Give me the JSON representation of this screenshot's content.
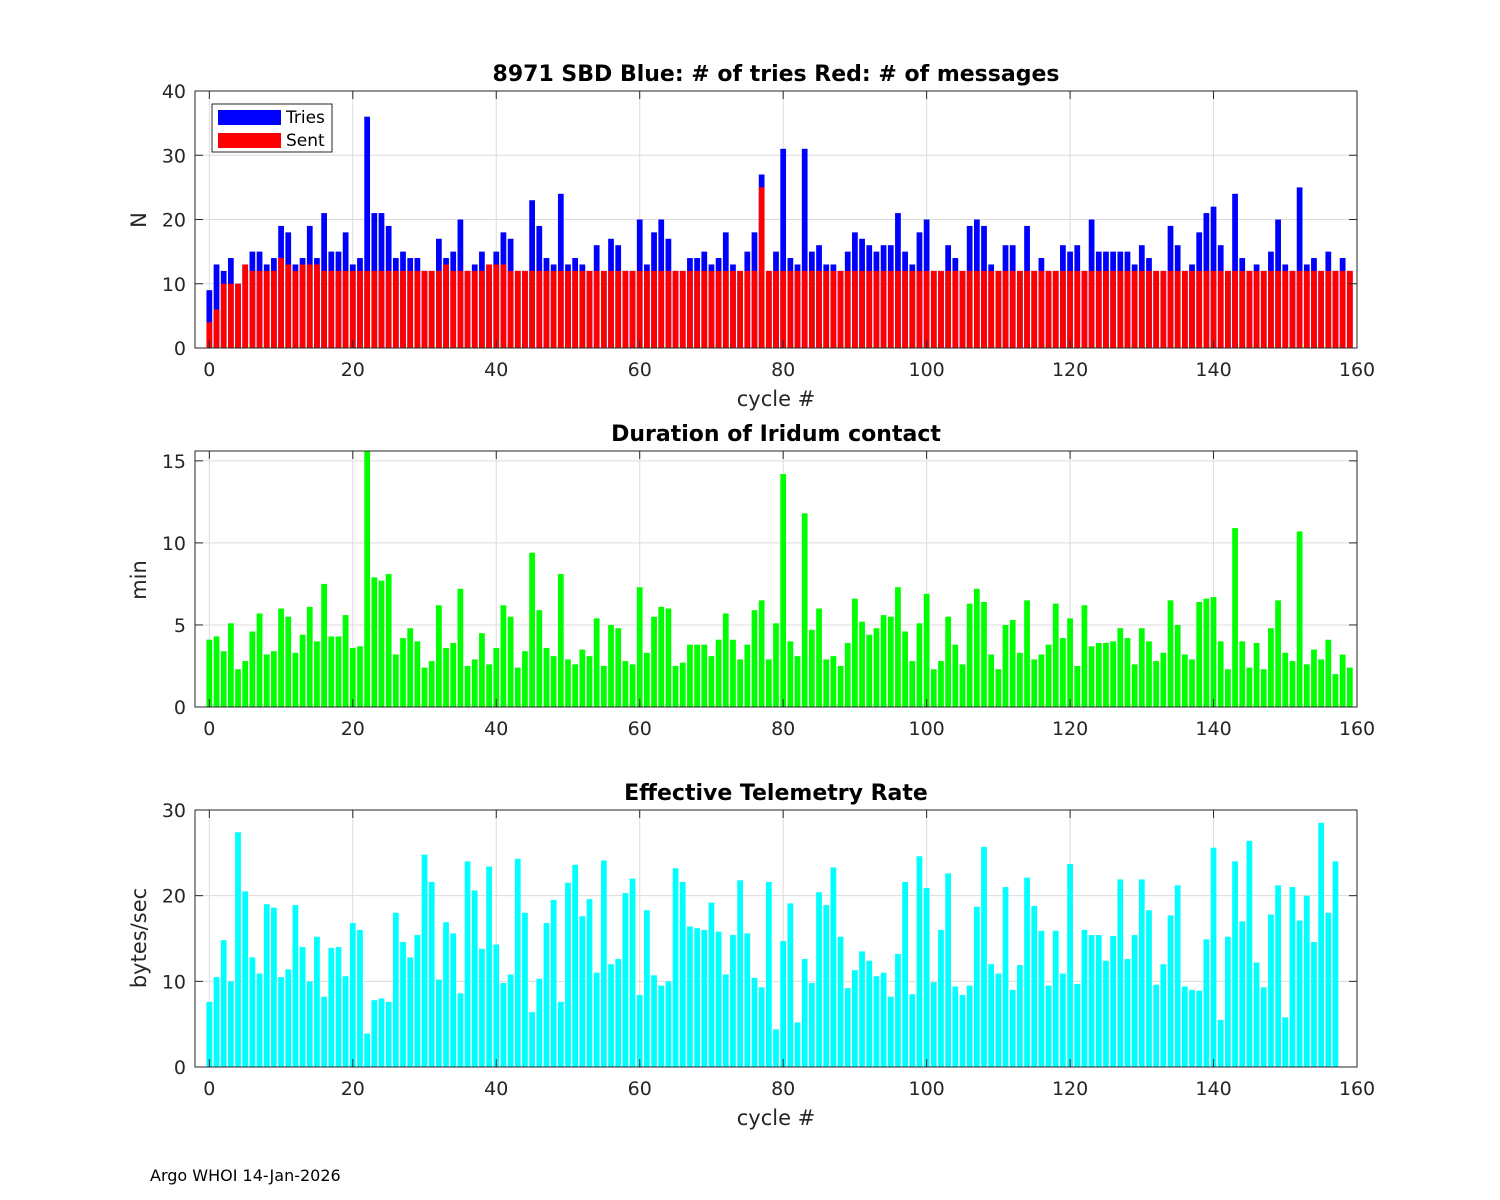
{
  "chart_data": [
    {
      "type": "bar",
      "stacked_overlay": true,
      "title": "8971 SBD  Blue: # of tries   Red: # of messages",
      "xlabel": "cycle #",
      "ylabel": "N",
      "xlim": [
        -2,
        160
      ],
      "ylim": [
        0,
        40
      ],
      "xticks": [
        0,
        20,
        40,
        60,
        80,
        100,
        120,
        140,
        160
      ],
      "yticks": [
        0,
        10,
        20,
        30,
        40
      ],
      "grid": true,
      "legend": {
        "position": "top-left",
        "entries": [
          "Tries",
          "Sent"
        ]
      },
      "series": [
        {
          "name": "Tries",
          "color": "#0000ff",
          "values": [
            9,
            13,
            12,
            14,
            10,
            13,
            15,
            15,
            13,
            14,
            19,
            18,
            13,
            14,
            19,
            14,
            21,
            15,
            15,
            18,
            13,
            14,
            36,
            21,
            21,
            19,
            14,
            15,
            14,
            14,
            12,
            12,
            17,
            14,
            15,
            20,
            12,
            13,
            15,
            13,
            15,
            18,
            17,
            12,
            12,
            23,
            19,
            14,
            13,
            24,
            13,
            14,
            13,
            12,
            16,
            12,
            17,
            16,
            12,
            12,
            20,
            13,
            18,
            20,
            17,
            12,
            12,
            14,
            14,
            15,
            13,
            14,
            18,
            13,
            12,
            15,
            18,
            27,
            12,
            15,
            31,
            14,
            13,
            31,
            15,
            16,
            13,
            13,
            12,
            15,
            18,
            17,
            16,
            15,
            16,
            16,
            21,
            15,
            13,
            18,
            20,
            12,
            12,
            16,
            14,
            12,
            19,
            20,
            19,
            13,
            12,
            16,
            16,
            12,
            19,
            12,
            14,
            12,
            12,
            16,
            15,
            16,
            12,
            20,
            15,
            15,
            15,
            15,
            15,
            13,
            16,
            14,
            12,
            12,
            19,
            16,
            12,
            13,
            18,
            21,
            22,
            16,
            12,
            24,
            14,
            12,
            13,
            12,
            15,
            20,
            13,
            12,
            25,
            13,
            14,
            12,
            15,
            12,
            14,
            12
          ]
        },
        {
          "name": "Sent",
          "color": "#ff0000",
          "values": [
            4,
            6,
            10,
            10,
            10,
            13,
            12,
            12,
            12,
            12,
            14,
            13,
            12,
            13,
            13,
            13,
            12,
            12,
            12,
            12,
            12,
            12,
            12,
            12,
            12,
            12,
            12,
            12,
            12,
            12,
            12,
            12,
            12,
            13,
            12,
            12,
            12,
            12,
            12,
            13,
            13,
            13,
            12,
            12,
            12,
            12,
            12,
            12,
            12,
            12,
            12,
            12,
            12,
            12,
            12,
            12,
            12,
            12,
            12,
            12,
            12,
            12,
            12,
            12,
            12,
            12,
            12,
            12,
            12,
            12,
            12,
            12,
            12,
            12,
            12,
            12,
            12,
            25,
            12,
            12,
            12,
            12,
            12,
            12,
            12,
            12,
            12,
            12,
            12,
            12,
            12,
            12,
            12,
            12,
            12,
            12,
            12,
            12,
            12,
            12,
            12,
            12,
            12,
            12,
            12,
            12,
            12,
            12,
            12,
            12,
            12,
            12,
            12,
            12,
            12,
            12,
            12,
            12,
            12,
            12,
            12,
            12,
            12,
            12,
            12,
            12,
            12,
            12,
            12,
            12,
            12,
            12,
            12,
            12,
            12,
            12,
            12,
            12,
            12,
            12,
            12,
            12,
            12,
            12,
            12,
            12,
            12,
            12,
            12,
            12,
            12,
            12,
            12,
            12,
            12,
            12,
            12,
            12,
            12,
            12
          ]
        }
      ]
    },
    {
      "type": "bar",
      "title": "Duration of Iridum contact",
      "xlabel": "",
      "ylabel": "min",
      "xlim": [
        -2,
        160
      ],
      "ylim": [
        0,
        15.6
      ],
      "xticks": [
        0,
        20,
        40,
        60,
        80,
        100,
        120,
        140,
        160
      ],
      "yticks": [
        0,
        5,
        10,
        15
      ],
      "grid": true,
      "series": [
        {
          "name": "Duration",
          "color": "#00ff00",
          "values": [
            4.1,
            4.3,
            3.4,
            5.1,
            2.3,
            2.8,
            4.6,
            5.7,
            3.2,
            3.4,
            6.0,
            5.5,
            3.3,
            4.4,
            6.1,
            4.0,
            7.5,
            4.3,
            4.3,
            5.6,
            3.6,
            3.7,
            15.6,
            7.9,
            7.7,
            8.1,
            3.2,
            4.2,
            4.8,
            4.0,
            2.4,
            2.8,
            6.2,
            3.6,
            3.9,
            7.2,
            2.5,
            2.9,
            4.5,
            2.6,
            3.6,
            6.2,
            5.5,
            2.4,
            3.4,
            9.4,
            5.9,
            3.6,
            3.1,
            8.1,
            2.9,
            2.6,
            3.5,
            3.1,
            5.4,
            2.5,
            5.0,
            4.8,
            2.8,
            2.6,
            7.3,
            3.3,
            5.5,
            6.1,
            6.0,
            2.5,
            2.7,
            3.8,
            3.8,
            3.8,
            3.1,
            4.1,
            5.7,
            4.1,
            2.9,
            3.8,
            5.9,
            6.5,
            2.9,
            5.1,
            14.2,
            4.0,
            3.1,
            11.8,
            4.7,
            6.0,
            2.9,
            3.1,
            2.5,
            3.9,
            6.6,
            5.2,
            4.4,
            4.8,
            5.6,
            5.5,
            7.3,
            4.6,
            2.8,
            5.1,
            6.9,
            2.3,
            2.8,
            5.5,
            3.8,
            2.6,
            6.3,
            7.2,
            6.4,
            3.2,
            2.3,
            5.0,
            5.3,
            3.3,
            6.5,
            2.9,
            3.2,
            3.8,
            6.3,
            4.2,
            5.4,
            2.5,
            6.2,
            3.7,
            3.9,
            3.9,
            4.0,
            4.8,
            4.2,
            2.6,
            4.8,
            4.0,
            2.8,
            3.3,
            6.5,
            5.0,
            3.2,
            2.9,
            6.4,
            6.6,
            6.7,
            4.0,
            2.3,
            10.9,
            4.0,
            2.4,
            3.9,
            2.3,
            4.8,
            6.5,
            3.3,
            2.8,
            10.7,
            2.6,
            3.5,
            2.9,
            4.1,
            2.0,
            3.2,
            2.4
          ]
        }
      ]
    },
    {
      "type": "bar",
      "title": "Effective Telemetry Rate",
      "xlabel": "cycle #",
      "ylabel": "bytes/sec",
      "xlim": [
        -2,
        160
      ],
      "ylim": [
        0,
        30
      ],
      "xticks": [
        0,
        20,
        40,
        60,
        80,
        100,
        120,
        140,
        160
      ],
      "yticks": [
        0,
        10,
        20,
        30
      ],
      "grid": true,
      "series": [
        {
          "name": "Rate",
          "color": "#00ffff",
          "values": [
            7.6,
            10.5,
            14.8,
            10.0,
            27.4,
            20.5,
            12.8,
            10.9,
            19.0,
            18.6,
            10.5,
            11.4,
            18.9,
            14.0,
            10.0,
            15.2,
            8.2,
            13.9,
            14.0,
            10.6,
            16.8,
            16.0,
            3.9,
            7.8,
            8.0,
            7.6,
            18.0,
            14.6,
            12.8,
            15.4,
            24.8,
            21.6,
            10.2,
            16.9,
            15.6,
            8.6,
            24.0,
            20.6,
            13.8,
            23.4,
            14.3,
            9.8,
            10.8,
            24.3,
            18.0,
            6.4,
            10.3,
            16.8,
            19.5,
            7.6,
            21.5,
            23.6,
            17.6,
            19.6,
            11.0,
            24.1,
            12.0,
            12.6,
            20.3,
            22.0,
            8.4,
            18.3,
            10.7,
            9.5,
            10.0,
            23.2,
            21.6,
            16.4,
            16.2,
            16.0,
            19.2,
            15.8,
            10.8,
            15.4,
            21.8,
            15.6,
            10.4,
            9.3,
            21.6,
            4.4,
            14.7,
            19.1,
            5.2,
            12.6,
            9.8,
            20.4,
            18.9,
            23.3,
            15.2,
            9.2,
            11.3,
            13.5,
            12.4,
            10.6,
            11.0,
            8.2,
            13.2,
            21.6,
            8.5,
            24.6,
            20.9,
            9.9,
            16.0,
            22.6,
            9.4,
            8.4,
            9.5,
            18.7,
            25.7,
            12.0,
            10.9,
            21.0,
            9.0,
            11.9,
            22.1,
            18.8,
            15.9,
            9.5,
            15.9,
            10.9,
            23.7,
            9.7,
            16.0,
            15.4,
            15.4,
            12.4,
            15.3,
            21.9,
            12.6,
            15.4,
            21.9,
            18.3,
            9.6,
            12.0,
            17.7,
            21.2,
            9.4,
            9.0,
            8.9,
            14.9,
            25.6,
            5.5,
            15.2,
            24.0,
            17.0,
            26.4,
            12.2,
            9.3,
            17.8,
            21.2,
            5.8,
            21.0,
            17.1,
            20.0,
            14.6,
            28.5,
            18.0,
            24.0
          ]
        }
      ]
    }
  ],
  "footer_text": "Argo WHOI 14-Jan-2026"
}
